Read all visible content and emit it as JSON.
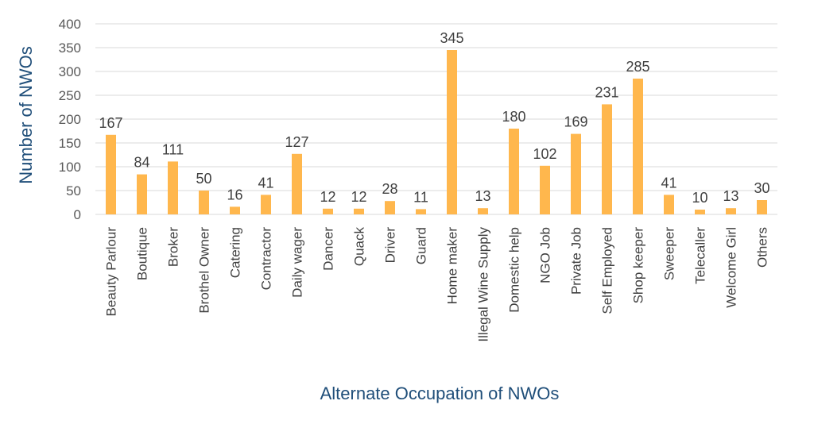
{
  "chart_data": {
    "type": "bar",
    "categories": [
      "Beauty Parlour",
      "Boutique",
      "Broker",
      "Brothel Owner",
      "Catering",
      "Contractor",
      "Daily wager",
      "Dancer",
      "Quack",
      "Driver",
      "Guard",
      "Home maker",
      "Illegal Wine Supply",
      "Domestic help",
      "NGO Job",
      "Private Job",
      "Self Employed",
      "Shop keeper",
      "Sweeper",
      "Telecaller",
      "Welcome Girl",
      "Others"
    ],
    "values": [
      167,
      84,
      111,
      50,
      16,
      41,
      127,
      12,
      12,
      28,
      11,
      345,
      13,
      180,
      102,
      169,
      231,
      285,
      41,
      10,
      13,
      30
    ],
    "xlabel": "Alternate Occupation of NWOs",
    "ylabel": "Number of NWOs",
    "ylim": [
      0,
      400
    ],
    "yticks": [
      0,
      50,
      100,
      150,
      200,
      250,
      300,
      350,
      400
    ],
    "bar_color": "#ffb74d",
    "grid": true,
    "legend": "none",
    "data_labels": true
  }
}
